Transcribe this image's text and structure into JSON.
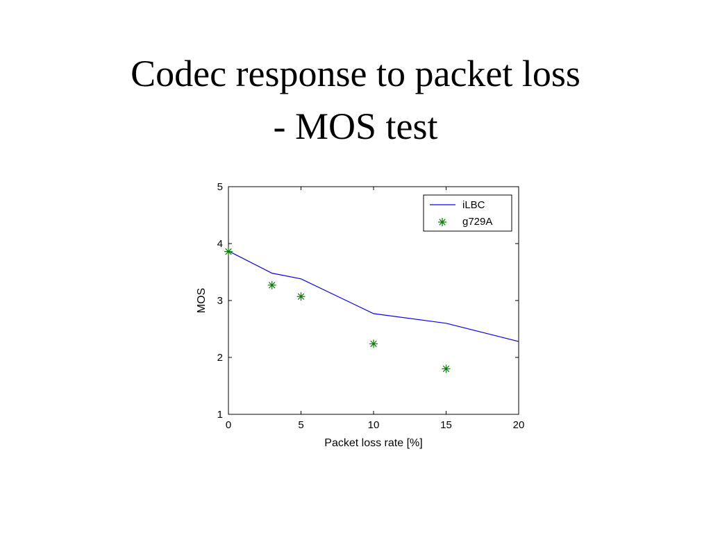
{
  "slide": {
    "title_line1": "Codec response to packet loss",
    "title_line2": "- MOS test"
  },
  "chart_data": {
    "type": "line",
    "title": "",
    "xlabel": "Packet loss rate [%]",
    "ylabel": "MOS",
    "xlim": [
      0,
      20
    ],
    "ylim": [
      1,
      5
    ],
    "xticks": [
      0,
      5,
      10,
      15,
      20
    ],
    "yticks": [
      1,
      2,
      3,
      4,
      5
    ],
    "grid": false,
    "legend_position": "top-right",
    "series": [
      {
        "name": "iLBC",
        "style": "line",
        "color": "#0000ff",
        "x": [
          0,
          3,
          5,
          10,
          15,
          20
        ],
        "y": [
          3.87,
          3.48,
          3.38,
          2.77,
          2.6,
          2.28
        ]
      },
      {
        "name": "g729A",
        "style": "marker-star",
        "color": "#008000",
        "x": [
          0,
          3,
          5,
          10,
          15
        ],
        "y": [
          3.86,
          3.27,
          3.07,
          2.24,
          1.8
        ]
      }
    ]
  }
}
